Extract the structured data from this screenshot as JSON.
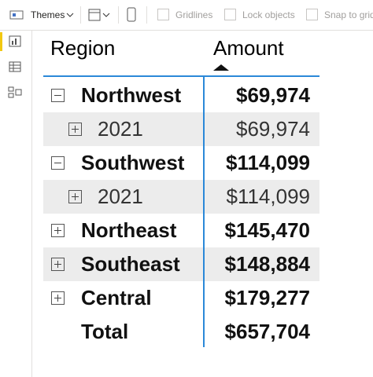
{
  "toolbar": {
    "themes": "Themes",
    "gridlines": "Gridlines",
    "lock_objects": "Lock objects",
    "snap_to_grid": "Snap to grid"
  },
  "table": {
    "headers": [
      "Region",
      "Amount"
    ],
    "rows": [
      {
        "label": "Northwest",
        "amount": "$69,974",
        "level": 0,
        "expanded": true,
        "shaded": false
      },
      {
        "label": "2021",
        "amount": "$69,974",
        "level": 1,
        "expanded": false,
        "shaded": true
      },
      {
        "label": "Southwest",
        "amount": "$114,099",
        "level": 0,
        "expanded": true,
        "shaded": false
      },
      {
        "label": "2021",
        "amount": "$114,099",
        "level": 1,
        "expanded": false,
        "shaded": true
      },
      {
        "label": "Northeast",
        "amount": "$145,470",
        "level": 0,
        "expanded": false,
        "shaded": false
      },
      {
        "label": "Southeast",
        "amount": "$148,884",
        "level": 0,
        "expanded": false,
        "shaded": true
      },
      {
        "label": "Central",
        "amount": "$179,277",
        "level": 0,
        "expanded": false,
        "shaded": false
      },
      {
        "label": "Total",
        "amount": "$657,704",
        "level": 0,
        "shaded": false
      }
    ]
  }
}
